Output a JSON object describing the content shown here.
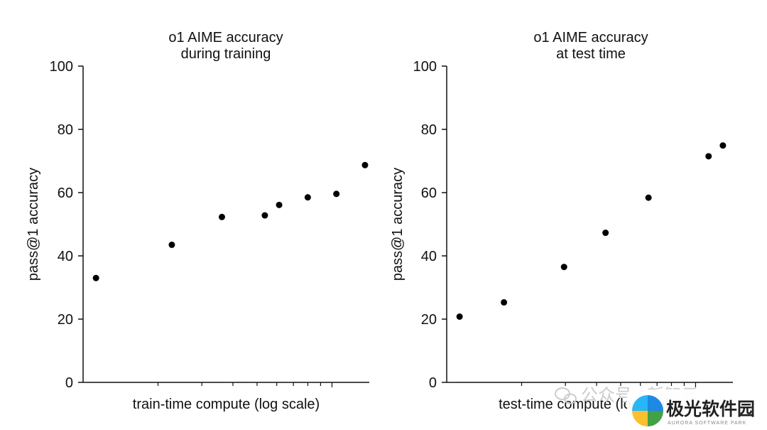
{
  "chart_data": [
    {
      "type": "scatter",
      "title": [
        "o1 AIME accuracy",
        "during training"
      ],
      "xlabel": "train-time compute (log scale)",
      "ylabel": "pass@1 accuracy",
      "xscale": "log",
      "ylim": [
        0,
        100
      ],
      "yticks": [
        "0",
        "20",
        "40",
        "60",
        "80",
        "100"
      ],
      "x_rel": [
        0.045,
        0.31,
        0.485,
        0.635,
        0.685,
        0.785,
        0.885,
        0.985
      ],
      "y": [
        33,
        43.5,
        52.3,
        52.8,
        56.1,
        58.5,
        59.6,
        68.7
      ],
      "grid": false,
      "legend": false
    },
    {
      "type": "scatter",
      "title": [
        "o1 AIME accuracy",
        "at test time"
      ],
      "xlabel": "test-time compute (log scale)",
      "ylabel": "pass@1 accuracy",
      "xscale": "log",
      "ylim": [
        0,
        100
      ],
      "yticks": [
        "0",
        "20",
        "40",
        "60",
        "80",
        "100"
      ],
      "x_rel": [
        0.045,
        0.2,
        0.41,
        0.555,
        0.705,
        0.915,
        0.965
      ],
      "y": [
        20.8,
        25.3,
        36.5,
        47.3,
        58.4,
        71.5,
        74.9
      ],
      "grid": false,
      "legend": false
    }
  ],
  "watermark": {
    "text": "公众号 · 新智元",
    "icon": "wechat-icon"
  },
  "brand": {
    "name": "极光软件园",
    "sub": "AURORA SOFTWARE PARK",
    "colors": [
      "#1e88e5",
      "#43a047",
      "#fbc02d",
      "#29b6f6"
    ]
  }
}
